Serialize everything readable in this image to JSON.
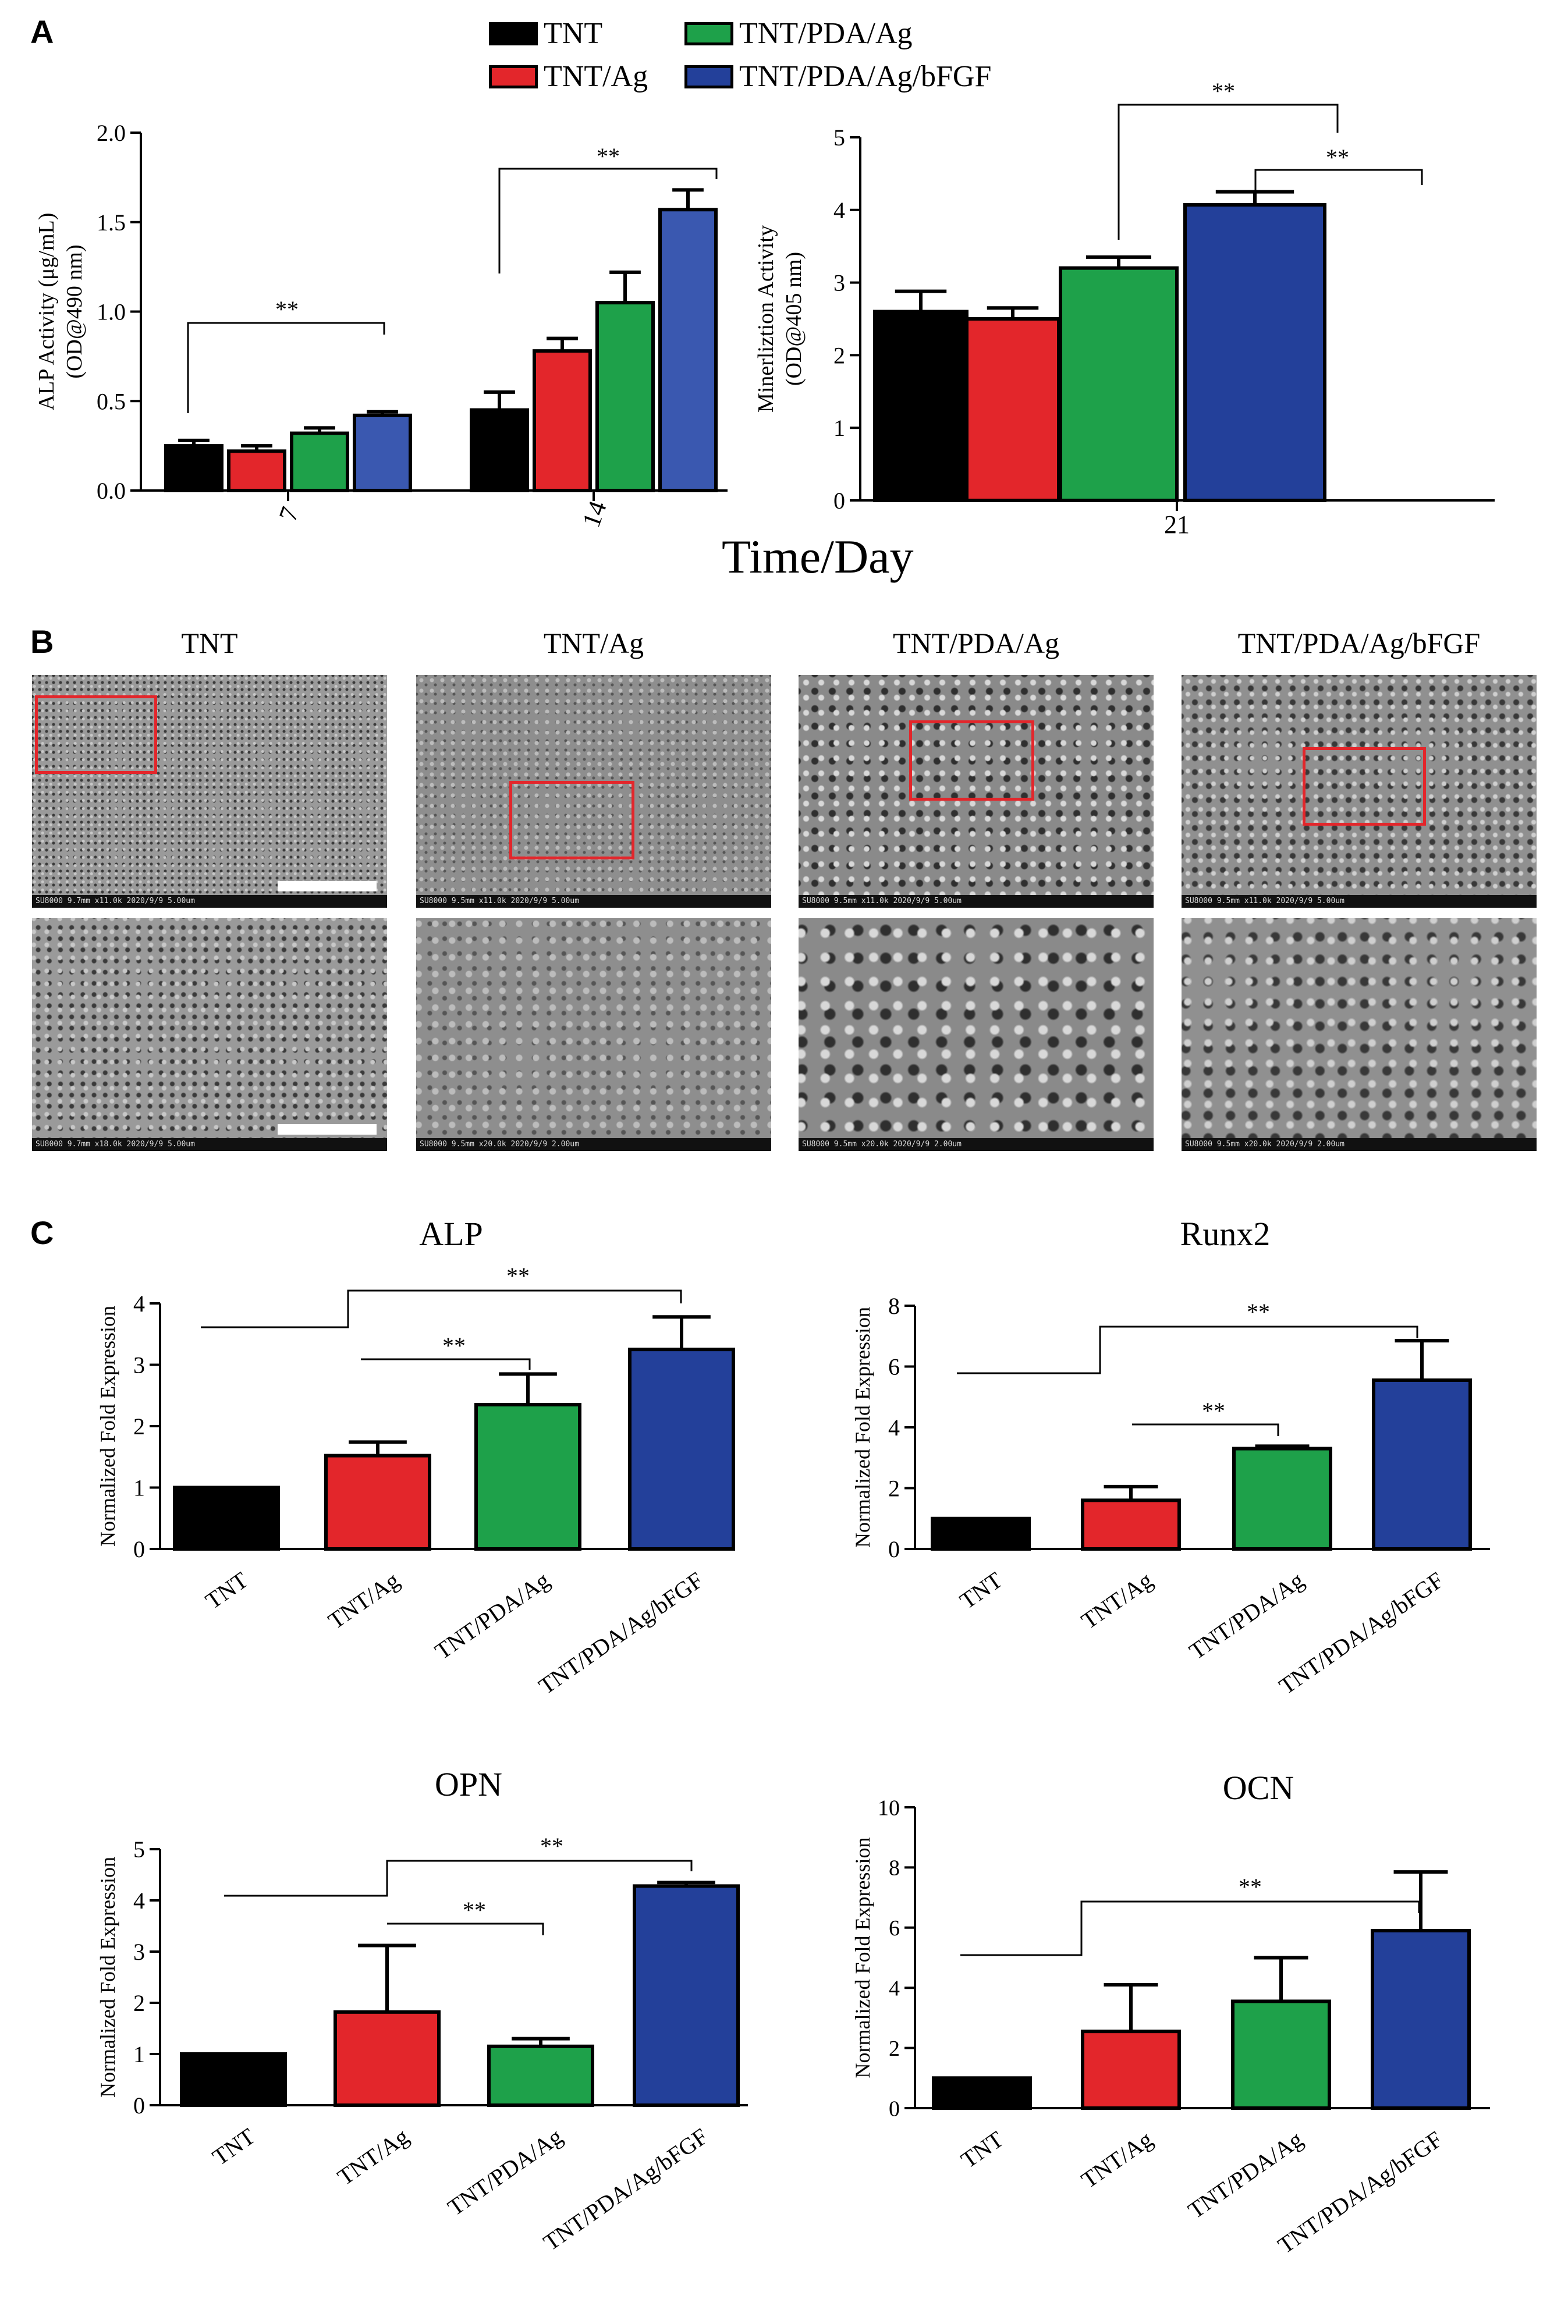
{
  "panels": {
    "a": "A",
    "b": "B",
    "c": "C"
  },
  "legend": [
    {
      "label": "TNT",
      "color": "#000000"
    },
    {
      "label": "TNT/Ag",
      "color": "#e3262b"
    },
    {
      "label": "TNT/PDA/Ag",
      "color": "#1ea14a"
    },
    {
      "label": "TNT/PDA/Ag/bFGF",
      "color": "#23409a"
    }
  ],
  "shared_xlabel": "Time/Day",
  "chart_data": [
    {
      "id": "alp-activity",
      "type": "bar",
      "title": "",
      "xlabel": "",
      "ylabel": [
        "ALP Activity (μg/mL)",
        "(OD@490 nm)"
      ],
      "ylim": [
        0,
        2.0
      ],
      "yticks": [
        0.0,
        0.5,
        1.0,
        1.5,
        2.0
      ],
      "ytick_labels": [
        "0.0",
        "0.5",
        "1.0",
        "1.5",
        "2.0"
      ],
      "categories": [
        "7",
        "14"
      ],
      "series": [
        {
          "name": "TNT",
          "color": "#000000",
          "values": [
            0.25,
            0.45
          ],
          "errors": [
            0.03,
            0.1
          ]
        },
        {
          "name": "TNT/Ag",
          "color": "#e3262b",
          "values": [
            0.22,
            0.78
          ],
          "errors": [
            0.03,
            0.07
          ]
        },
        {
          "name": "TNT/PDA/Ag",
          "color": "#1ea14a",
          "values": [
            0.32,
            1.05
          ],
          "errors": [
            0.03,
            0.17
          ]
        },
        {
          "name": "TNT/PDA/Ag/bFGF",
          "color": "#3a58b0",
          "values": [
            0.42,
            1.57
          ],
          "errors": [
            0.02,
            0.11
          ]
        }
      ],
      "annotations": [
        "**",
        "**"
      ]
    },
    {
      "id": "mineralization",
      "type": "bar",
      "title": "",
      "xlabel": "",
      "ylabel": [
        "Minerliztion Activity",
        "(OD@405 nm)"
      ],
      "ylim": [
        0,
        5
      ],
      "yticks": [
        0,
        1,
        2,
        3,
        4,
        5
      ],
      "ytick_labels": [
        "0",
        "1",
        "2",
        "3",
        "4",
        "5"
      ],
      "categories": [
        "21"
      ],
      "series": [
        {
          "name": "TNT",
          "color": "#000000",
          "values": [
            2.6
          ],
          "errors": [
            0.28
          ]
        },
        {
          "name": "TNT/Ag",
          "color": "#e3262b",
          "values": [
            2.5
          ],
          "errors": [
            0.15
          ]
        },
        {
          "name": "TNT/PDA/Ag",
          "color": "#1ea14a",
          "values": [
            3.2
          ],
          "errors": [
            0.15
          ]
        },
        {
          "name": "TNT/PDA/Ag/bFGF",
          "color": "#23409a",
          "values": [
            4.07
          ],
          "errors": [
            0.18
          ]
        }
      ],
      "annotations": [
        "**",
        "**"
      ]
    },
    {
      "id": "alp-expression",
      "type": "bar",
      "title": "ALP",
      "ylabel": "Normalized Fold Expression",
      "ylim": [
        0,
        4
      ],
      "yticks": [
        0,
        1,
        2,
        3,
        4
      ],
      "ytick_labels": [
        "0",
        "1",
        "2",
        "3",
        "4"
      ],
      "categories": [
        "TNT",
        "TNT/Ag",
        "TNT/PDA/Ag",
        "TNT/PDA/Ag/bFGF"
      ],
      "values": [
        1.0,
        1.52,
        2.35,
        3.25
      ],
      "errors": [
        0,
        0.22,
        0.5,
        0.53
      ],
      "colors": [
        "#000000",
        "#e3262b",
        "#1ea14a",
        "#23409a"
      ],
      "annotations": [
        "**",
        "**"
      ]
    },
    {
      "id": "runx2-expression",
      "type": "bar",
      "title": "Runx2",
      "ylabel": "Normalized Fold Expression",
      "ylim": [
        0,
        8
      ],
      "yticks": [
        0,
        2,
        4,
        6,
        8
      ],
      "ytick_labels": [
        "0",
        "2",
        "4",
        "6",
        "8"
      ],
      "categories": [
        "TNT",
        "TNT/Ag",
        "TNT/PDA/Ag",
        "TNT/PDA/Ag/bFGF"
      ],
      "values": [
        1.0,
        1.6,
        3.3,
        5.55
      ],
      "errors": [
        0,
        0.45,
        0.08,
        1.3
      ],
      "colors": [
        "#000000",
        "#e3262b",
        "#1ea14a",
        "#23409a"
      ],
      "annotations": [
        "**",
        "**"
      ]
    },
    {
      "id": "opn-expression",
      "type": "bar",
      "title": "OPN",
      "ylabel": "Normalized Fold Expression",
      "ylim": [
        0,
        5
      ],
      "yticks": [
        0,
        1,
        2,
        3,
        4,
        5
      ],
      "ytick_labels": [
        "0",
        "1",
        "2",
        "3",
        "4",
        "5"
      ],
      "categories": [
        "TNT",
        "TNT/Ag",
        "TNT/PDA/Ag",
        "TNT/PDA/Ag/bFGF"
      ],
      "values": [
        1.0,
        1.82,
        1.15,
        4.28
      ],
      "errors": [
        0,
        1.3,
        0.15,
        0.07
      ],
      "colors": [
        "#000000",
        "#e3262b",
        "#1ea14a",
        "#23409a"
      ],
      "annotations": [
        "**",
        "**"
      ]
    },
    {
      "id": "ocn-expression",
      "type": "bar",
      "title": "OCN",
      "ylabel": "Normalized Fold Expression",
      "ylim": [
        0,
        10
      ],
      "yticks": [
        0,
        2,
        4,
        6,
        8,
        10
      ],
      "ytick_labels": [
        "0",
        "2",
        "4",
        "6",
        "8",
        "10"
      ],
      "categories": [
        "TNT",
        "TNT/Ag",
        "TNT/PDA/Ag",
        "TNT/PDA/Ag/bFGF"
      ],
      "values": [
        1.0,
        2.55,
        3.55,
        5.9
      ],
      "errors": [
        0,
        1.55,
        1.45,
        1.95
      ],
      "colors": [
        "#000000",
        "#e3262b",
        "#1ea14a",
        "#23409a"
      ],
      "annotations": [
        "**"
      ]
    }
  ],
  "sem": {
    "titles": [
      "TNT",
      "TNT/Ag",
      "TNT/PDA/Ag",
      "TNT/PDA/Ag/bFGF"
    ],
    "top_info": [
      "SU8000 9.7mm x11.0k 2020/9/9",
      "SU8000 9.5mm x11.0k 2020/9/9",
      "SU8000 9.5mm x11.0k 2020/9/9",
      "SU8000 9.5mm x11.0k 2020/9/9"
    ],
    "bottom_info": [
      "SU8000 9.7mm x18.0k 2020/9/9",
      "SU8000 9.5mm x20.0k 2020/9/9",
      "SU8000 9.5mm x20.0k 2020/9/9",
      "SU8000 9.5mm x20.0k 2020/9/9"
    ],
    "top_scale": [
      "5.00um",
      "5.00um",
      "5.00um",
      "5.00um"
    ],
    "bottom_scale": [
      "5.00um",
      "2.00um",
      "2.00um",
      "2.00um"
    ]
  }
}
